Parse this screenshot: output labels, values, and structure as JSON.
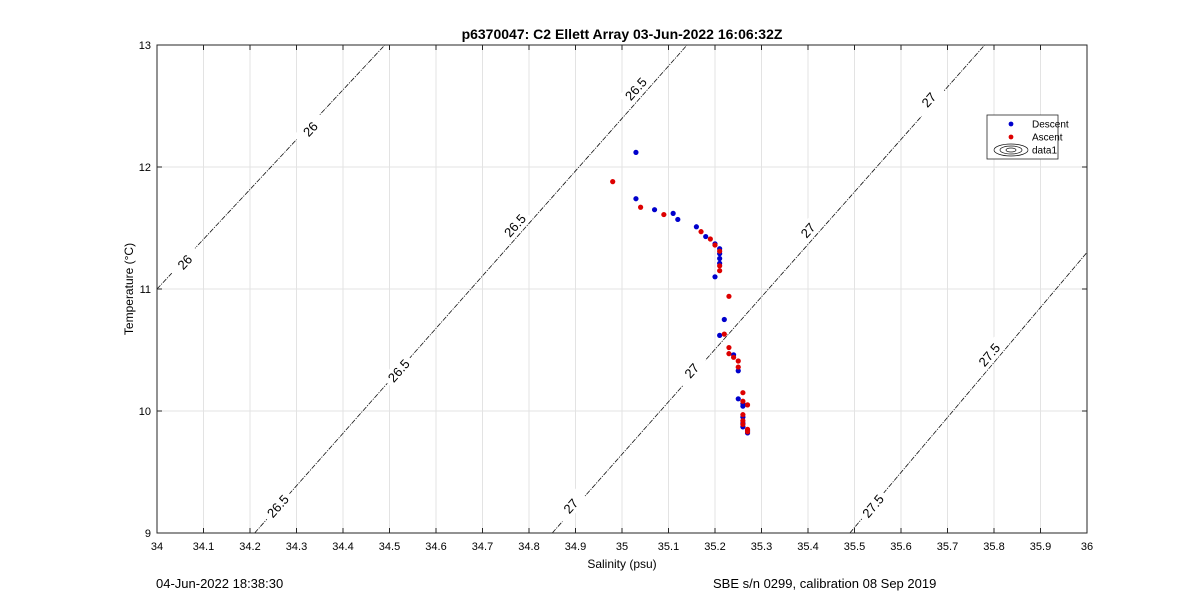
{
  "chart_data": {
    "type": "scatter",
    "title": "p6370047: C2 Ellett Array 03-Jun-2022 16:06:32Z",
    "xlabel": "Salinity (psu)",
    "ylabel": "Temperature (°C)",
    "xlim": [
      34,
      36
    ],
    "ylim": [
      9,
      13
    ],
    "xticks": [
      "34",
      "34.1",
      "34.2",
      "34.3",
      "34.4",
      "34.5",
      "34.6",
      "34.7",
      "34.8",
      "34.9",
      "35",
      "35.1",
      "35.2",
      "35.3",
      "35.4",
      "35.5",
      "35.6",
      "35.7",
      "35.8",
      "35.9",
      "36"
    ],
    "yticks": [
      "9",
      "10",
      "11",
      "12",
      "13"
    ],
    "grid": true,
    "legend_position": "top-right",
    "series": [
      {
        "name": "Descent",
        "color": "#0000cc",
        "points": [
          [
            35.03,
            12.12
          ],
          [
            35.03,
            11.74
          ],
          [
            35.07,
            11.65
          ],
          [
            35.11,
            11.62
          ],
          [
            35.12,
            11.57
          ],
          [
            35.16,
            11.51
          ],
          [
            35.18,
            11.43
          ],
          [
            35.2,
            11.37
          ],
          [
            35.21,
            11.33
          ],
          [
            35.21,
            11.29
          ],
          [
            35.21,
            11.25
          ],
          [
            35.21,
            11.21
          ],
          [
            35.2,
            11.1
          ],
          [
            35.22,
            10.75
          ],
          [
            35.21,
            10.62
          ],
          [
            35.24,
            10.46
          ],
          [
            35.25,
            10.33
          ],
          [
            35.25,
            10.1
          ],
          [
            35.26,
            10.06
          ],
          [
            35.26,
            10.04
          ],
          [
            35.26,
            9.95
          ],
          [
            35.26,
            9.9
          ],
          [
            35.26,
            9.87
          ],
          [
            35.27,
            9.84
          ],
          [
            35.27,
            9.82
          ]
        ]
      },
      {
        "name": "Ascent",
        "color": "#dd0000",
        "points": [
          [
            34.98,
            11.88
          ],
          [
            35.04,
            11.67
          ],
          [
            35.09,
            11.61
          ],
          [
            35.17,
            11.47
          ],
          [
            35.19,
            11.41
          ],
          [
            35.2,
            11.36
          ],
          [
            35.21,
            11.31
          ],
          [
            35.21,
            11.19
          ],
          [
            35.21,
            11.15
          ],
          [
            35.23,
            10.94
          ],
          [
            35.22,
            10.63
          ],
          [
            35.23,
            10.52
          ],
          [
            35.23,
            10.47
          ],
          [
            35.24,
            10.44
          ],
          [
            35.25,
            10.41
          ],
          [
            35.25,
            10.36
          ],
          [
            35.26,
            10.15
          ],
          [
            35.26,
            10.08
          ],
          [
            35.27,
            10.05
          ],
          [
            35.26,
            9.97
          ],
          [
            35.26,
            9.92
          ],
          [
            35.26,
            9.89
          ],
          [
            35.27,
            9.85
          ],
          [
            35.27,
            9.83
          ]
        ]
      }
    ],
    "contour_series": {
      "name": "data1",
      "lines": [
        {
          "level": "26",
          "points": [
            [
              34.0,
              11.0
            ],
            [
              34.49,
              13.0
            ]
          ],
          "labels": [
            [
              34.06,
              11.22
            ],
            [
              34.33,
              12.31
            ]
          ]
        },
        {
          "level": "26.5",
          "points": [
            [
              34.21,
              9.0
            ],
            [
              35.14,
              13.0
            ]
          ],
          "labels": [
            [
              34.26,
              9.22
            ],
            [
              34.52,
              10.33
            ],
            [
              34.77,
              11.52
            ],
            [
              35.03,
              12.64
            ]
          ]
        },
        {
          "level": "27",
          "points": [
            [
              34.85,
              9.0
            ],
            [
              35.78,
              13.0
            ]
          ],
          "labels": [
            [
              34.89,
              9.22
            ],
            [
              35.15,
              10.33
            ],
            [
              35.4,
              11.48
            ],
            [
              35.66,
              12.55
            ]
          ]
        },
        {
          "level": "27.5",
          "points": [
            [
              35.49,
              9.0
            ],
            [
              36.0,
              11.3
            ]
          ],
          "labels": [
            [
              35.54,
              9.22
            ],
            [
              35.79,
              10.46
            ]
          ]
        }
      ]
    }
  },
  "footer": {
    "left": "04-Jun-2022 18:38:30",
    "right": "SBE s/n 0299, calibration 08 Sep 2019"
  }
}
